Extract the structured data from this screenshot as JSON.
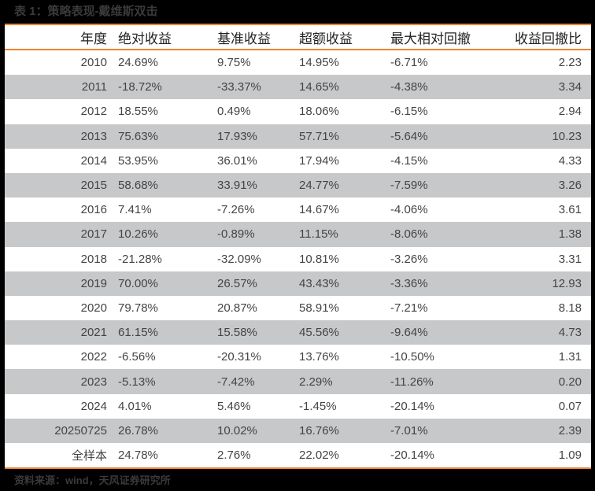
{
  "caption": "表 1：策略表现-戴维斯双击",
  "source": "资料来源：wind，天风证券研究所",
  "colors": {
    "accent_border": "#f0822e",
    "stripe_row": "#c7c8ca",
    "background": "#000000"
  },
  "table": {
    "headers": [
      "年度",
      "绝对收益",
      "基准收益",
      "超额收益",
      "最大相对回撤",
      "收益回撤比"
    ],
    "rows": [
      [
        "2010",
        "24.69%",
        "9.75%",
        "14.95%",
        "-6.71%",
        "2.23"
      ],
      [
        "2011",
        "-18.72%",
        "-33.37%",
        "14.65%",
        "-4.38%",
        "3.34"
      ],
      [
        "2012",
        "18.55%",
        "0.49%",
        "18.06%",
        "-6.15%",
        "2.94"
      ],
      [
        "2013",
        "75.63%",
        "17.93%",
        "57.71%",
        "-5.64%",
        "10.23"
      ],
      [
        "2014",
        "53.95%",
        "36.01%",
        "17.94%",
        "-4.15%",
        "4.33"
      ],
      [
        "2015",
        "58.68%",
        "33.91%",
        "24.77%",
        "-7.59%",
        "3.26"
      ],
      [
        "2016",
        "7.41%",
        "-7.26%",
        "14.67%",
        "-4.06%",
        "3.61"
      ],
      [
        "2017",
        "10.26%",
        "-0.89%",
        "11.15%",
        "-8.06%",
        "1.38"
      ],
      [
        "2018",
        "-21.28%",
        "-32.09%",
        "10.81%",
        "-3.26%",
        "3.31"
      ],
      [
        "2019",
        "70.00%",
        "26.57%",
        "43.43%",
        "-3.36%",
        "12.93"
      ],
      [
        "2020",
        "79.78%",
        "20.87%",
        "58.91%",
        "-7.21%",
        "8.18"
      ],
      [
        "2021",
        "61.15%",
        "15.58%",
        "45.56%",
        "-9.64%",
        "4.73"
      ],
      [
        "2022",
        "-6.56%",
        "-20.31%",
        "13.76%",
        "-10.50%",
        "1.31"
      ],
      [
        "2023",
        "-5.13%",
        "-7.42%",
        "2.29%",
        "-11.26%",
        "0.20"
      ],
      [
        "2024",
        "4.01%",
        "5.46%",
        "-1.45%",
        "-20.14%",
        "0.07"
      ],
      [
        "20250725",
        "26.78%",
        "10.02%",
        "16.76%",
        "-7.01%",
        "2.39"
      ],
      [
        "全样本",
        "24.78%",
        "2.76%",
        "22.02%",
        "-20.14%",
        "1.09"
      ]
    ]
  }
}
